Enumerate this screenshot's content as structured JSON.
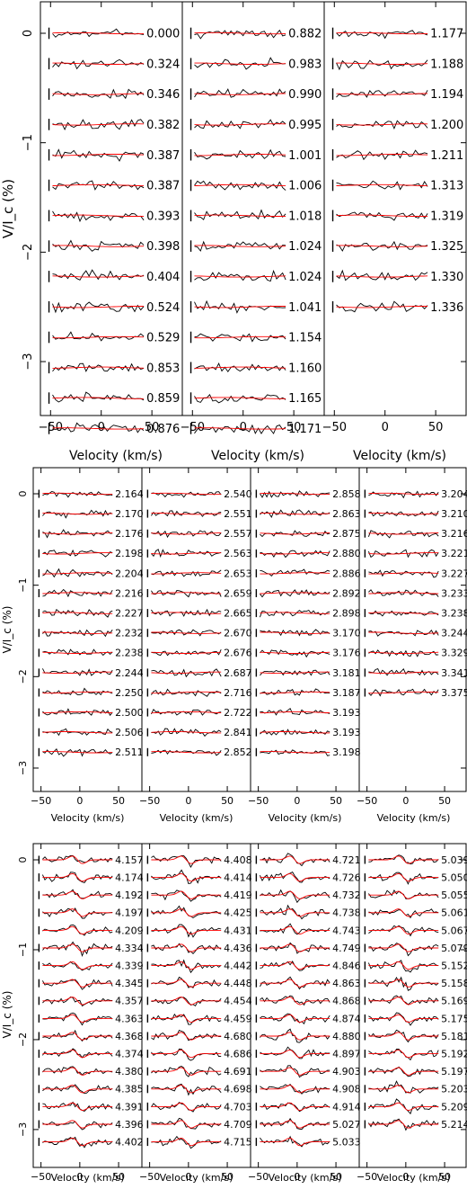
{
  "chart_data": [
    {
      "type": "line",
      "ylabel": "V/I_c (%)",
      "xlabel": "Velocity (km/s)",
      "xlim": [
        -60,
        80
      ],
      "ylim": [
        -3.75,
        0.25
      ],
      "x_ticks": [
        -50,
        0,
        50
      ],
      "y_ticks": [
        0,
        -1,
        -2,
        -3
      ],
      "columns": [
        [
          "0.000",
          "0.324",
          "0.346",
          "0.382",
          "0.387",
          "0.387",
          "0.393",
          "0.398",
          "0.404",
          "0.524",
          "0.529",
          "0.853",
          "0.859",
          "0.876"
        ],
        [
          "0.882",
          "0.983",
          "0.990",
          "0.995",
          "1.001",
          "1.006",
          "1.018",
          "1.024",
          "1.024",
          "1.041",
          "1.154",
          "1.160",
          "1.165",
          "1.171"
        ],
        [
          "1.177",
          "1.188",
          "1.194",
          "1.200",
          "1.211",
          "1.313",
          "1.319",
          "1.325",
          "1.330",
          "1.336"
        ]
      ]
    },
    {
      "type": "line",
      "ylabel": "V/I_c (%)",
      "xlabel": "Velocity (km/s)",
      "xlim": [
        -60,
        80
      ],
      "ylim": [
        -3.75,
        0.25
      ],
      "x_ticks": [
        -50,
        0,
        50
      ],
      "y_ticks": [
        0,
        -1,
        -2,
        -3
      ],
      "columns": [
        [
          "2.164",
          "2.170",
          "2.176",
          "2.198",
          "2.204",
          "2.216",
          "2.227",
          "2.232",
          "2.238",
          "2.244",
          "2.250",
          "2.500",
          "2.506",
          "2.511"
        ],
        [
          "2.540",
          "2.551",
          "2.557",
          "2.563",
          "2.653",
          "2.659",
          "2.665",
          "2.670",
          "2.676",
          "2.687",
          "2.716",
          "2.722",
          "2.841",
          "2.852"
        ],
        [
          "2.858",
          "2.863",
          "2.875",
          "2.880",
          "2.886",
          "2.892",
          "2.898",
          "3.170",
          "3.176",
          "3.181",
          "3.187",
          "3.193",
          "3.193",
          "3.198"
        ],
        [
          "3.204",
          "3.210",
          "3.216",
          "3.221",
          "3.227",
          "3.233",
          "3.238",
          "3.244",
          "3.329",
          "3.341",
          "3.375"
        ]
      ]
    },
    {
      "type": "line",
      "ylabel": "V/I_c (%)",
      "xlabel": "Velocity (km/s)",
      "xlim": [
        -60,
        80
      ],
      "ylim": [
        -4.4,
        0.3
      ],
      "x_ticks": [
        -50,
        0,
        50
      ],
      "y_ticks": [
        0,
        -1,
        -2,
        -3,
        -4
      ],
      "columns": [
        [
          "4.157",
          "4.174",
          "4.192",
          "4.197",
          "4.209",
          "4.334",
          "4.339",
          "4.345",
          "4.357",
          "4.363",
          "4.368",
          "4.374",
          "4.380",
          "4.385",
          "4.391",
          "4.396",
          "4.402"
        ],
        [
          "4.408",
          "4.414",
          "4.419",
          "4.425",
          "4.431",
          "4.436",
          "4.442",
          "4.448",
          "4.454",
          "4.459",
          "4.680",
          "4.686",
          "4.691",
          "4.698",
          "4.703",
          "4.709",
          "4.715"
        ],
        [
          "4.721",
          "4.726",
          "4.732",
          "4.738",
          "4.743",
          "4.749",
          "4.846",
          "4.863",
          "4.868",
          "4.874",
          "4.880",
          "4.897",
          "4.903",
          "4.908",
          "4.914",
          "5.027",
          "5.033"
        ],
        [
          "5.039",
          "5.050",
          "5.055",
          "5.061",
          "5.067",
          "5.079",
          "5.152",
          "5.158",
          "5.169",
          "5.175",
          "5.181",
          "5.192",
          "5.197",
          "5.203",
          "5.209",
          "5.214"
        ]
      ]
    }
  ],
  "colors": {
    "observed": "#000000",
    "model": "#ff0000",
    "frame": "#000000"
  }
}
